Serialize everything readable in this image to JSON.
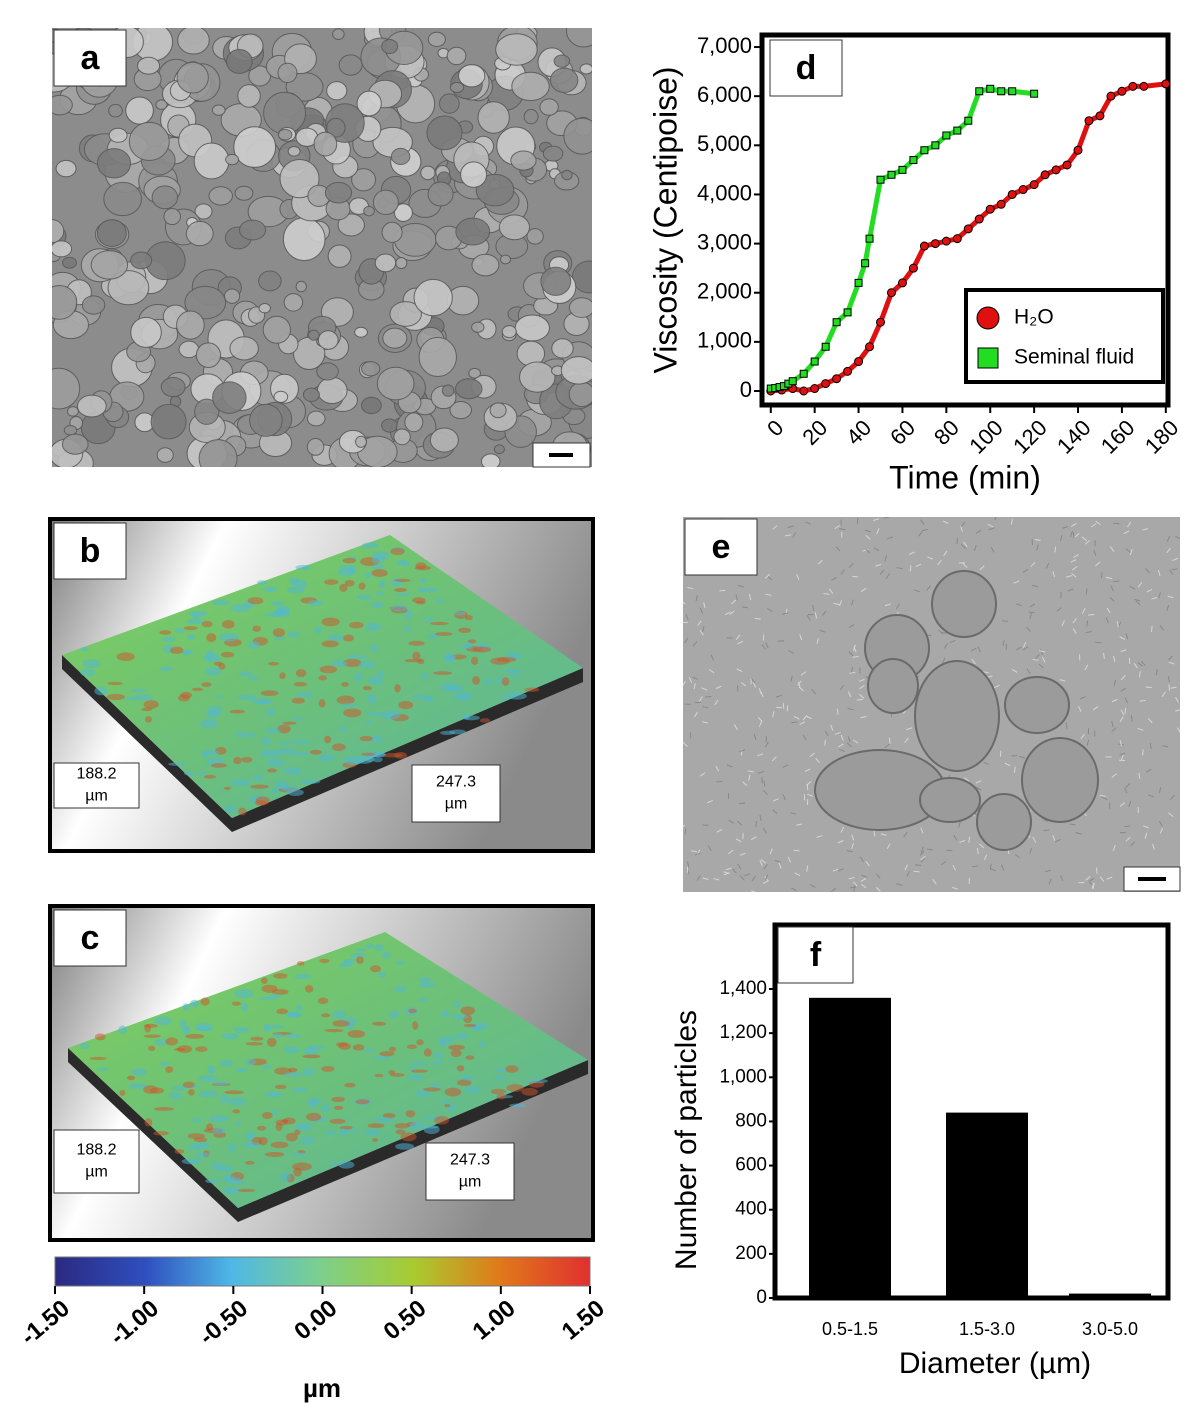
{
  "panels": {
    "a": {
      "label": "a"
    },
    "b": {
      "label": "b",
      "dims": [
        [
          "188.2",
          "µm"
        ],
        [
          "247.3",
          "µm"
        ]
      ]
    },
    "c": {
      "label": "c",
      "dims": [
        [
          "188.2",
          "µm"
        ],
        [
          "247.3",
          "µm"
        ]
      ]
    },
    "e": {
      "label": "e"
    }
  },
  "colorbar": {
    "label": "µm",
    "lim": [
      -1.5,
      1.5
    ],
    "ticks": [
      {
        "value": -1.5,
        "label": "-1.50"
      },
      {
        "value": -1,
        "label": "-1.00"
      },
      {
        "value": -0.5,
        "label": "-0.50"
      },
      {
        "value": 0,
        "label": "0.00"
      },
      {
        "value": 0.5,
        "label": "0.50"
      },
      {
        "value": 1,
        "label": "1.00"
      },
      {
        "value": 1.5,
        "label": "1.50"
      }
    ]
  },
  "chart_data": [
    {
      "type": "scatter",
      "panel_label": "d",
      "x_label": "Time (min)",
      "y_label": "Viscosity (Centipoise)",
      "xlim": [
        -4,
        181
      ],
      "ylim": [
        -285,
        7245
      ],
      "xticks": [
        0,
        20,
        40,
        60,
        80,
        100,
        120,
        140,
        160,
        180
      ],
      "yticks": [
        0,
        {
          "value": 1000,
          "label": "1,000"
        },
        {
          "value": 2000,
          "label": "2,000"
        },
        {
          "value": 3000,
          "label": "3,000"
        },
        {
          "value": 4000,
          "label": "4,000"
        },
        {
          "value": 5000,
          "label": "5,000"
        },
        {
          "value": 6000,
          "label": "6,000"
        },
        {
          "value": 7000,
          "label": "7,000"
        }
      ],
      "series": [
        {
          "name": "H₂O",
          "color": "#e01010",
          "marker": "circle",
          "x": [
            0,
            5,
            10,
            15,
            20,
            25,
            30,
            35,
            40,
            45,
            50,
            55,
            60,
            65,
            70,
            75,
            80,
            85,
            90,
            95,
            100,
            105,
            110,
            115,
            120,
            125,
            130,
            135,
            140,
            145,
            150,
            155,
            160,
            165,
            170,
            180
          ],
          "values": [
            0,
            20,
            50,
            0,
            50,
            150,
            250,
            400,
            600,
            900,
            1400,
            2000,
            2200,
            2500,
            2950,
            3000,
            3050,
            3100,
            3300,
            3500,
            3700,
            3800,
            4000,
            4100,
            4200,
            4400,
            4500,
            4600,
            4900,
            5500,
            5600,
            6000,
            6100,
            6200,
            6200,
            6250
          ]
        },
        {
          "name": "Seminal fluid",
          "color": "#22dd22",
          "marker": "square",
          "x": [
            0,
            2,
            4,
            6,
            8,
            10,
            15,
            20,
            25,
            30,
            35,
            40,
            43,
            45,
            50,
            55,
            60,
            65,
            70,
            75,
            80,
            85,
            90,
            95,
            100,
            105,
            110,
            120
          ],
          "values": [
            50,
            60,
            80,
            100,
            150,
            200,
            350,
            600,
            900,
            1400,
            1600,
            2200,
            2600,
            3100,
            4300,
            4400,
            4500,
            4700,
            4900,
            5000,
            5200,
            5300,
            5500,
            6100,
            6150,
            6100,
            6100,
            6050
          ]
        }
      ]
    },
    {
      "type": "bar",
      "panel_label": "f",
      "x_label": "Diameter (µm)",
      "y_label": "Number of particles",
      "categories": [
        "0.5-1.5",
        "1.5-3.0",
        "3.0-5.0"
      ],
      "values": [
        1360,
        840,
        20
      ],
      "color": "#000000",
      "ylim": [
        0,
        1690
      ],
      "yticks": [
        0,
        200,
        400,
        600,
        800,
        {
          "value": 1000,
          "label": "1,000"
        },
        {
          "value": 1200,
          "label": "1,200"
        },
        {
          "value": 1400,
          "label": "1,400"
        }
      ]
    }
  ]
}
